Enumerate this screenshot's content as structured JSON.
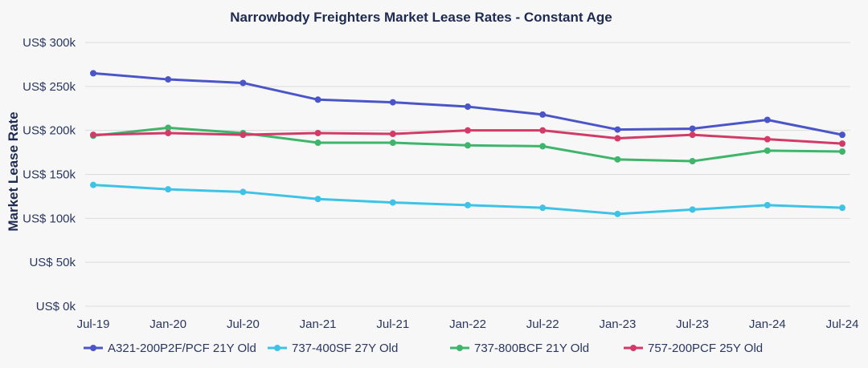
{
  "chart_data": {
    "type": "line",
    "title": "Narrowbody Freighters Market Lease Rates - Constant Age",
    "ylabel": "Market Lease Rate",
    "xlabel": "",
    "categories": [
      "Jul-19",
      "Jan-20",
      "Jul-20",
      "Jan-21",
      "Jul-21",
      "Jan-22",
      "Jul-22",
      "Jan-23",
      "Jul-23",
      "Jan-24",
      "Jul-24"
    ],
    "ylim": [
      0,
      300000
    ],
    "yticks": [
      0,
      50000,
      100000,
      150000,
      200000,
      250000,
      300000
    ],
    "ytick_labels": [
      "US$ 0k",
      "US$ 50k",
      "US$ 100k",
      "US$ 150k",
      "US$ 200k",
      "US$ 250k",
      "US$ 300k"
    ],
    "grid": "horizontal",
    "legend_position": "bottom",
    "series": [
      {
        "name": "A321-200P2F/PCF 21Y Old",
        "color": "#4a55c8",
        "values": [
          265000,
          258000,
          254000,
          235000,
          232000,
          227000,
          218000,
          201000,
          202000,
          212000,
          195000
        ]
      },
      {
        "name": "737-400SF 27Y Old",
        "color": "#3ec3e6",
        "values": [
          138000,
          133000,
          130000,
          122000,
          118000,
          115000,
          112000,
          105000,
          110000,
          115000,
          112000
        ]
      },
      {
        "name": "737-800BCF 21Y Old",
        "color": "#3fb56c",
        "values": [
          194000,
          203000,
          197000,
          186000,
          186000,
          183000,
          182000,
          167000,
          165000,
          177000,
          176000
        ]
      },
      {
        "name": "757-200PCF 25Y Old",
        "color": "#d23a67",
        "values": [
          195000,
          197000,
          195000,
          197000,
          196000,
          200000,
          200000,
          191000,
          195000,
          190000,
          185000
        ]
      }
    ]
  }
}
